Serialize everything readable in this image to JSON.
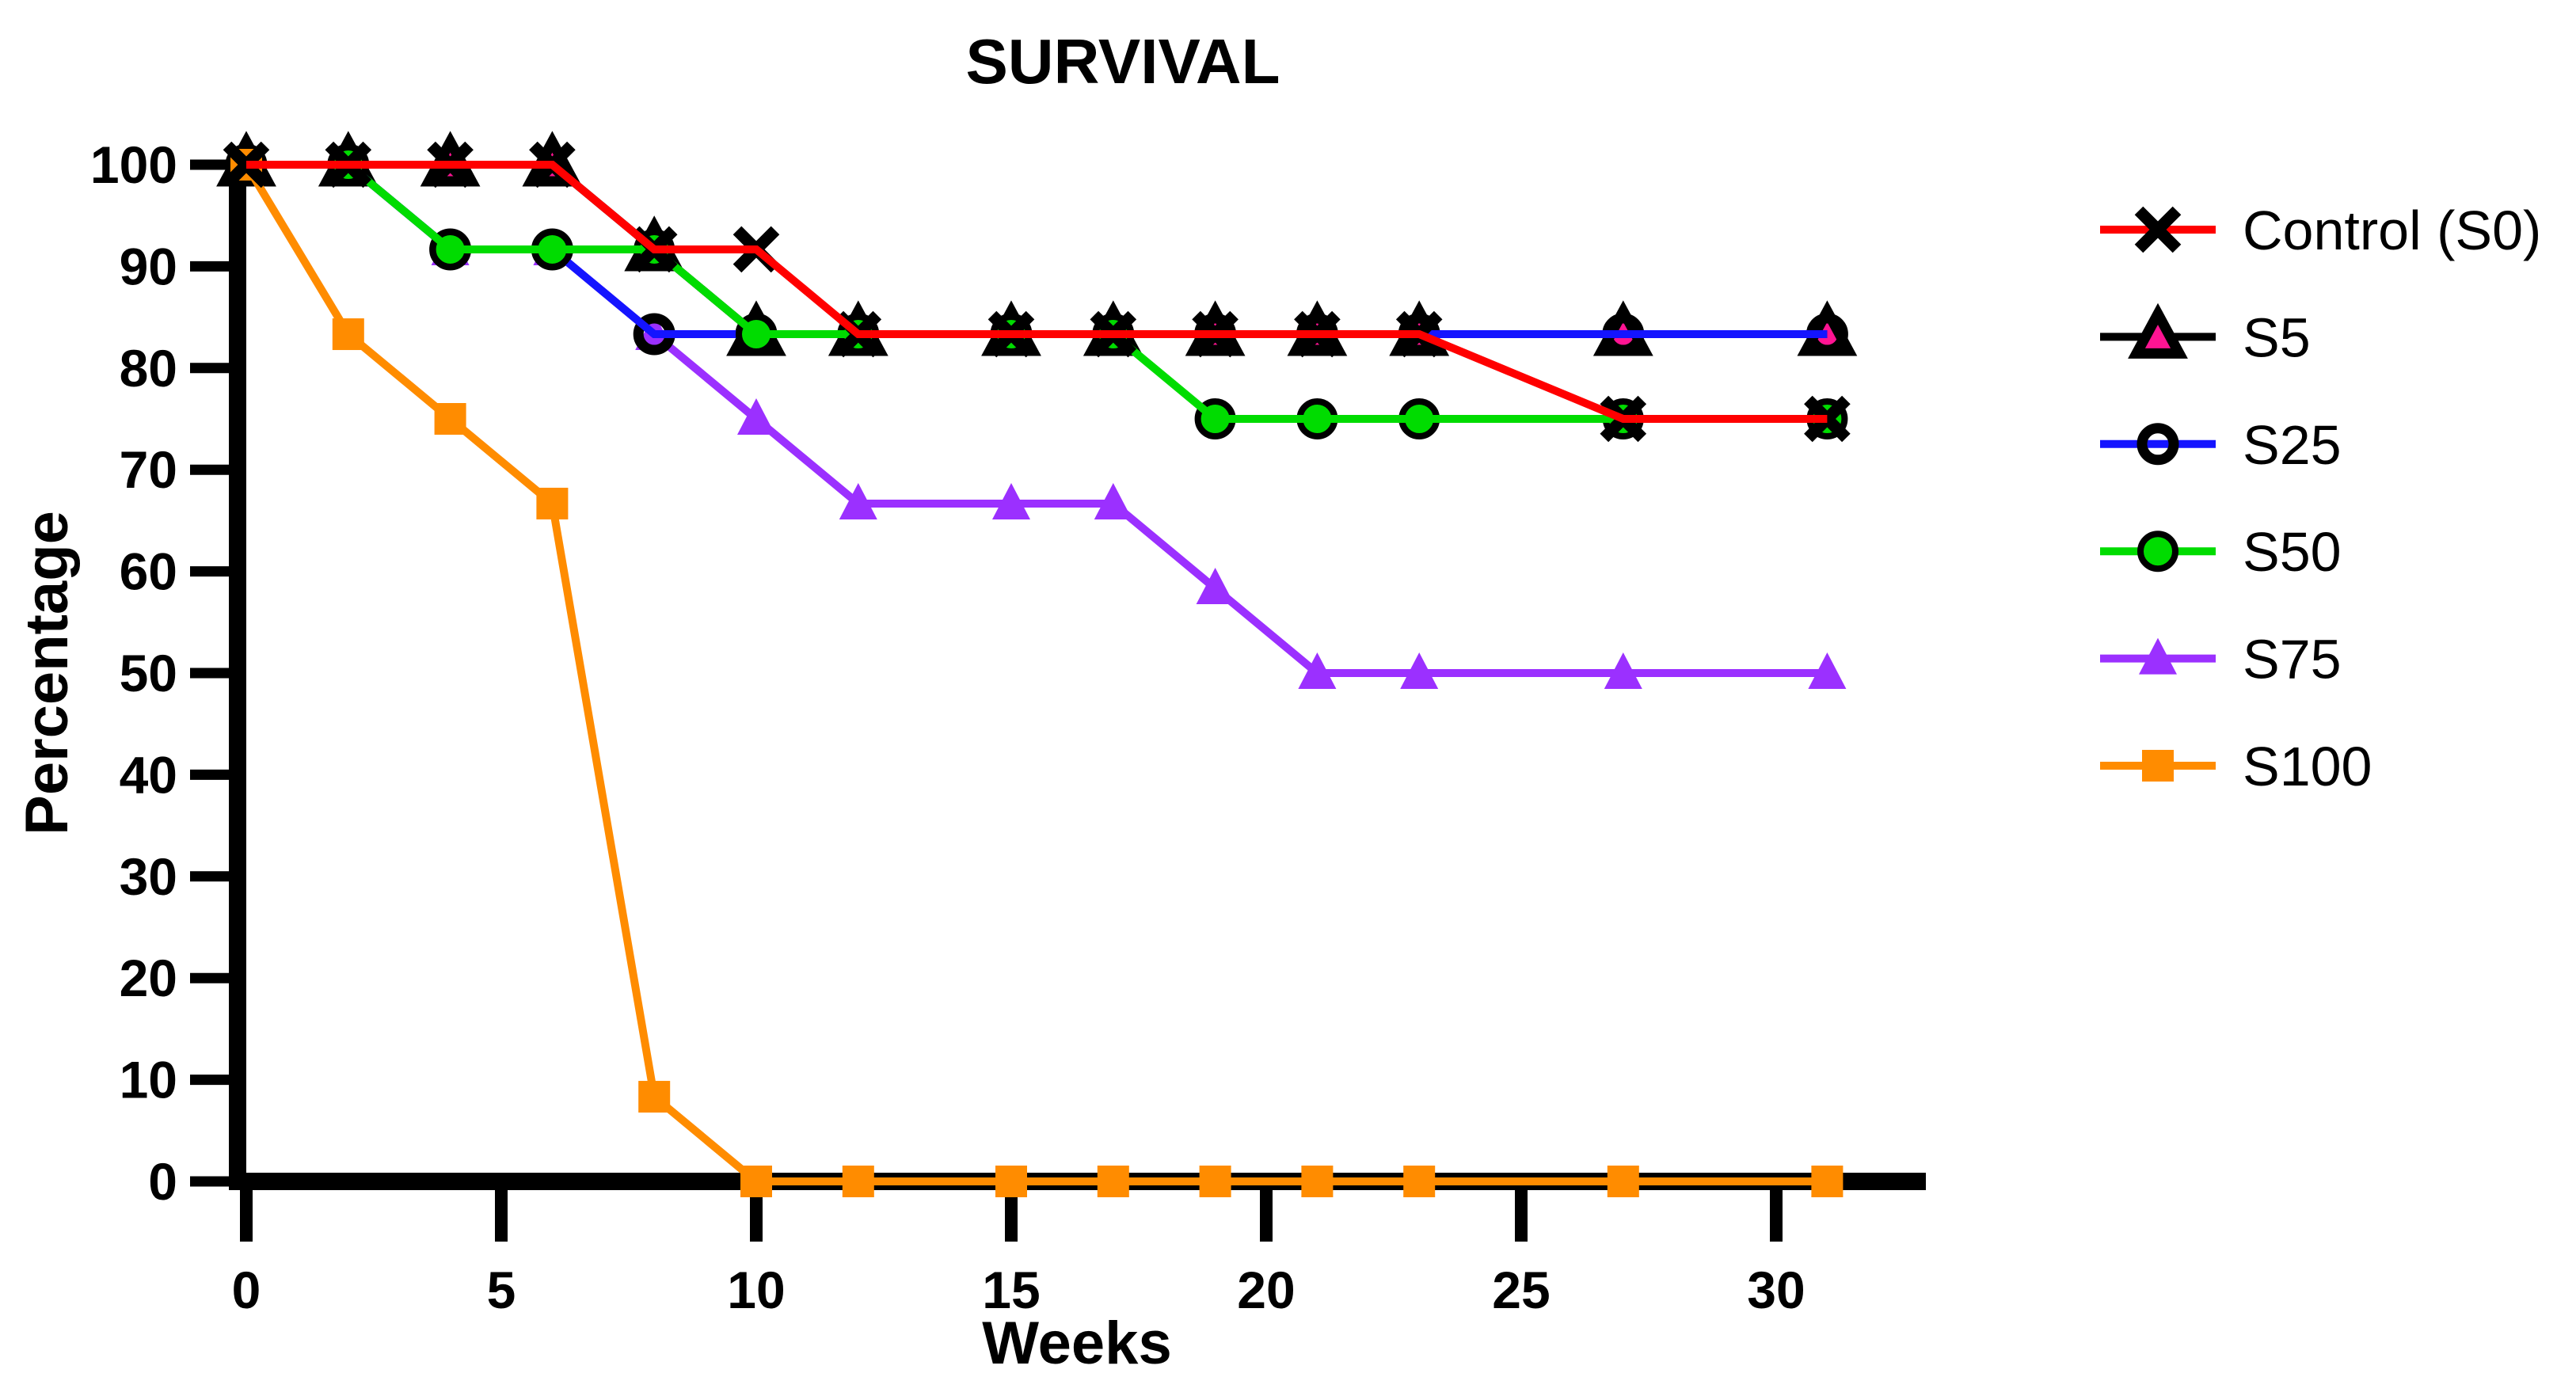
{
  "title": "SURVIVAL",
  "chart_data": {
    "type": "line",
    "title": "SURVIVAL",
    "x_label": "Weeks",
    "y_label": "Percentage",
    "x_ticks": [
      0,
      5,
      10,
      15,
      20,
      25,
      30
    ],
    "y_ticks": [
      0,
      10,
      20,
      30,
      40,
      50,
      60,
      70,
      80,
      90,
      100
    ],
    "x_range": [
      0,
      33
    ],
    "y_range": [
      0,
      100
    ],
    "grid": false,
    "legend_position": "right",
    "weeks": [
      0,
      2,
      4,
      6,
      8,
      10,
      12,
      15,
      17,
      19,
      21,
      23,
      27,
      31
    ],
    "series": [
      {
        "name": "Control (S0)",
        "line_color": "#FF0000",
        "marker": "cross",
        "marker_stroke": "#000000",
        "values": [
          100,
          100,
          100,
          100,
          91.67,
          91.67,
          83.33,
          83.33,
          83.33,
          83.33,
          83.33,
          83.33,
          75,
          75
        ]
      },
      {
        "name": "S5",
        "line_color": "#000000",
        "marker": "bordered-triangle",
        "marker_fill": "#FF1493",
        "marker_stroke": "#000000",
        "values": [
          100,
          100,
          100,
          100,
          91.67,
          83.33,
          83.33,
          83.33,
          83.33,
          83.33,
          83.33,
          83.33,
          83.33,
          83.33
        ]
      },
      {
        "name": "S25",
        "line_color": "#1414FF",
        "marker": "open-circle",
        "marker_stroke": "#000000",
        "values": [
          100,
          100,
          91.67,
          91.67,
          83.33,
          83.33,
          83.33,
          83.33,
          83.33,
          83.33,
          83.33,
          83.33,
          83.33,
          83.33
        ]
      },
      {
        "name": "S50",
        "line_color": "#00DC00",
        "marker": "filled-circle",
        "marker_fill": "#00DC00",
        "marker_stroke": "#000000",
        "values": [
          100,
          100,
          91.67,
          91.67,
          91.67,
          83.33,
          83.33,
          83.33,
          83.33,
          75,
          75,
          75,
          75,
          75
        ]
      },
      {
        "name": "S75",
        "line_color": "#9B30FF",
        "marker": "filled-triangle",
        "marker_fill": "#9B30FF",
        "values": [
          100,
          100,
          91.67,
          91.67,
          83.33,
          75,
          66.67,
          66.67,
          66.67,
          58.33,
          50,
          50,
          50,
          50
        ]
      },
      {
        "name": "S100",
        "line_color": "#FF8C00",
        "marker": "filled-square",
        "marker_fill": "#FF8C00",
        "values": [
          100,
          83.33,
          75,
          66.67,
          8.33,
          0,
          0,
          0,
          0,
          0,
          0,
          0,
          0,
          0
        ]
      }
    ],
    "draw_order": [
      1,
      4,
      2,
      3,
      5,
      0
    ]
  }
}
